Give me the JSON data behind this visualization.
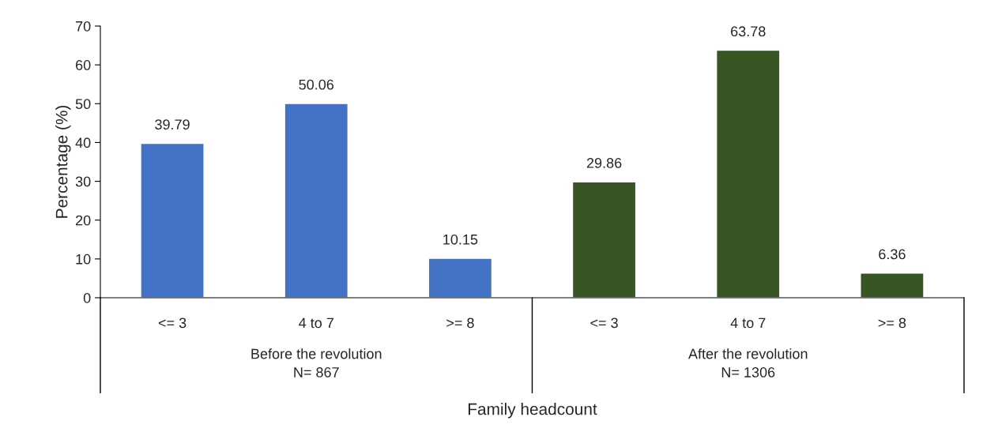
{
  "chart_data": {
    "type": "bar",
    "categories": [
      "<= 3",
      "4 to 7",
      ">= 8",
      "<= 3",
      "4 to 7",
      ">= 8"
    ],
    "values": [
      39.79,
      50.06,
      10.15,
      29.86,
      63.78,
      6.36
    ],
    "colors": [
      "#4472c4",
      "#4472c4",
      "#4472c4",
      "#375623",
      "#375623",
      "#375623"
    ],
    "data_labels": true,
    "xlabel": "Family headcount",
    "ylabel": "Percentage (%)",
    "ylim": [
      0,
      70
    ],
    "yticks": [
      0,
      10,
      20,
      30,
      40,
      50,
      60,
      70
    ],
    "grid": false,
    "legend": false,
    "annotations": [
      "Before the revolution\nN= 867",
      "After the revolution\nN= 1306"
    ]
  }
}
